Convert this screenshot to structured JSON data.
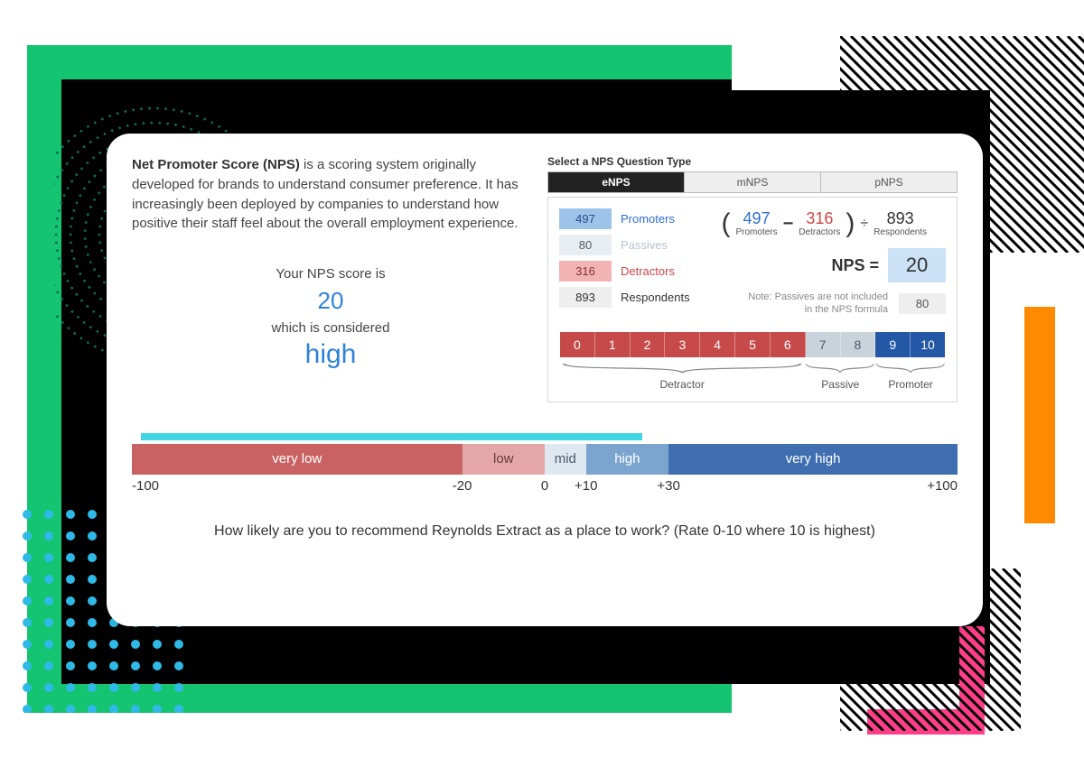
{
  "intro": {
    "bold": "Net Promoter Score (NPS)",
    "rest": " is a scoring system originally developed for brands to understand consumer preference.  It has increasingly been deployed by companies to understand how positive their staff feel about the overall employment experience."
  },
  "summary": {
    "line1": "Your NPS score is",
    "score": "20",
    "line2": "which is considered",
    "rating": "high"
  },
  "tabs": {
    "label": "Select a NPS Question Type",
    "items": [
      "eNPS",
      "mNPS",
      "pNPS"
    ],
    "active_index": 0
  },
  "counts": {
    "promoters": {
      "value": "497",
      "label": "Promoters",
      "bg": "#9dc3ea",
      "fg": "#244b8c",
      "label_color": "#2f6fd0"
    },
    "passives": {
      "value": "80",
      "label": "Passives",
      "bg": "#e9eef2",
      "fg": "#4d5a66",
      "label_color": "#b7c3cf"
    },
    "detractors": {
      "value": "316",
      "label": "Detractors",
      "bg": "#f2b3b3",
      "fg": "#8a2e2e",
      "label_color": "#d04545"
    },
    "respondents": {
      "value": "893",
      "label": "Respondents",
      "bg": "#eeeeee",
      "fg": "#333333",
      "label_color": "#333333"
    }
  },
  "formula": {
    "prom": {
      "value": "497",
      "label": "Promoters",
      "color": "#2f6fd0"
    },
    "detr": {
      "value": "316",
      "label": "Detractors",
      "color": "#d04545"
    },
    "resp": {
      "value": "893",
      "label": "Respondents",
      "color": "#333333"
    },
    "nps_label": "NPS =",
    "nps_value": "20",
    "note": "Note: Passives are not included in the NPS formula",
    "passives_box": "80"
  },
  "scale": {
    "cells": [
      {
        "n": "0",
        "bg": "#c74a4a"
      },
      {
        "n": "1",
        "bg": "#c74a4a"
      },
      {
        "n": "2",
        "bg": "#c74a4a"
      },
      {
        "n": "3",
        "bg": "#c74a4a"
      },
      {
        "n": "4",
        "bg": "#c74a4a"
      },
      {
        "n": "5",
        "bg": "#c74a4a"
      },
      {
        "n": "6",
        "bg": "#c74a4a"
      },
      {
        "n": "7",
        "bg": "#c9d3dc"
      },
      {
        "n": "8",
        "bg": "#c9d3dc"
      },
      {
        "n": "9",
        "bg": "#2457a6"
      },
      {
        "n": "10",
        "bg": "#2457a6"
      }
    ],
    "groups": [
      {
        "label": "Detractor",
        "span": 7
      },
      {
        "label": "Passive",
        "span": 2
      },
      {
        "label": "Promoter",
        "span": 2
      }
    ]
  },
  "range": {
    "indicator_color": "#3fd6e4",
    "segments": [
      {
        "label": "very low",
        "width_pct": 40.0,
        "bg": "#c96363",
        "fg": "#ffffff"
      },
      {
        "label": "low",
        "width_pct": 10.0,
        "bg": "#e3a7a7",
        "fg": "#6a3a3a"
      },
      {
        "label": "mid",
        "width_pct": 5.0,
        "bg": "#dfe8f1",
        "fg": "#4a5a6a"
      },
      {
        "label": "high",
        "width_pct": 10.0,
        "bg": "#7ba5cf",
        "fg": "#ffffff"
      },
      {
        "label": "very high",
        "width_pct": 35.0,
        "bg": "#3f6fb0",
        "fg": "#ffffff"
      }
    ],
    "ticks": [
      {
        "label": "-100",
        "pos_pct": 0
      },
      {
        "label": "-20",
        "pos_pct": 40
      },
      {
        "label": "0",
        "pos_pct": 50
      },
      {
        "label": "+10",
        "pos_pct": 55
      },
      {
        "label": "+30",
        "pos_pct": 65
      },
      {
        "label": "+100",
        "pos_pct": 100
      }
    ]
  },
  "question": "How likely are you to recommend Reynolds Extract as a place to work? (Rate 0-10 where 10 is highest)",
  "decor": {
    "green": "#14c471",
    "black": "#000000",
    "orange": "#ff8a00",
    "pink": "#ff3e8a",
    "cyan_dot": "#2fb9e6",
    "teal_dot": "#0f6a5a"
  }
}
